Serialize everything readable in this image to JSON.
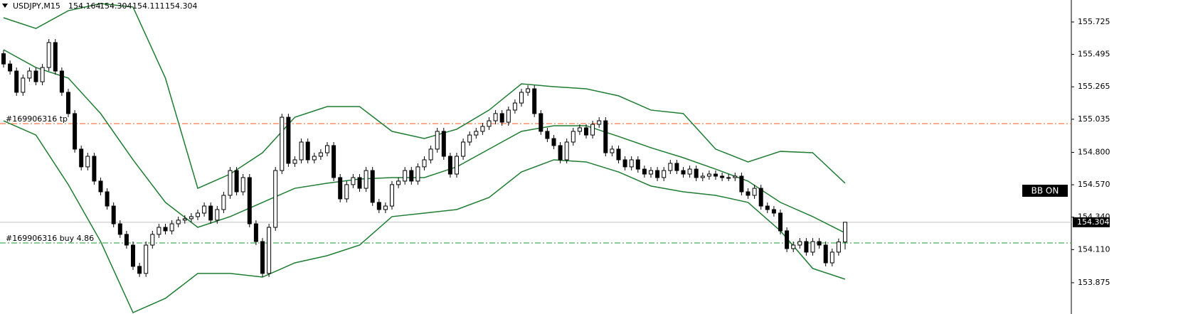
{
  "chart_data": {
    "type": "candlestick",
    "title": "USDJPY,M15",
    "ylim": [
      153.653,
      155.881
    ],
    "yticks": [
      155.725,
      155.495,
      155.265,
      155.035,
      {
        "value": 154.8,
        "label": "154.800"
      },
      {
        "value": 154.57,
        "label": "154.570"
      },
      {
        "value": 154.34,
        "label": "154.340"
      },
      {
        "value": 154.11,
        "label": "154.110"
      },
      153.875
    ],
    "open": [
      155.5,
      155.427,
      155.377,
      155.226,
      155.327,
      155.377,
      155.301,
      155.402,
      155.579,
      155.377,
      155.226,
      155.075,
      154.823,
      154.697,
      154.772,
      154.596,
      154.52,
      154.419,
      154.293,
      154.218,
      154.142,
      153.991,
      153.941,
      154.142,
      154.218,
      154.268,
      154.243,
      154.293,
      154.319,
      154.329,
      154.344,
      154.369,
      154.419,
      154.319,
      154.394,
      154.495,
      154.671,
      154.52,
      154.621,
      154.293,
      154.167,
      153.941,
      154.268,
      154.671,
      155.049,
      154.722,
      154.747,
      154.873,
      154.747,
      154.772,
      154.797,
      154.848,
      154.621,
      154.47,
      154.571,
      154.621,
      154.545,
      154.671,
      154.445,
      154.394,
      154.419,
      154.571,
      154.596,
      154.671,
      154.596,
      154.697,
      154.747,
      154.823,
      154.949,
      154.772,
      154.646,
      154.772,
      154.873,
      154.923,
      154.949,
      154.984,
      155.024,
      155.075,
      155.014,
      155.1,
      155.15,
      155.226,
      155.251,
      155.075,
      154.949,
      154.898,
      154.848,
      154.747,
      154.873,
      154.949,
      154.974,
      154.923,
      154.999,
      155.024,
      154.797,
      154.823,
      154.747,
      154.697,
      154.747,
      154.681,
      154.646,
      154.671,
      154.621,
      154.671,
      154.722,
      154.671,
      154.646,
      154.681,
      154.621,
      154.631,
      154.646,
      154.631,
      154.621,
      154.621,
      154.631,
      154.52,
      154.495,
      154.545,
      154.419,
      154.394,
      154.369,
      154.243,
      154.117,
      154.142,
      154.167,
      154.092,
      154.167,
      154.142,
      154.016,
      154.092,
      154.164
    ],
    "high": [
      155.525,
      155.452,
      155.402,
      155.352,
      155.402,
      155.402,
      155.427,
      155.604,
      155.604,
      155.402,
      155.251,
      155.1,
      154.848,
      154.797,
      154.797,
      154.621,
      154.545,
      154.444,
      154.318,
      154.243,
      154.167,
      154.016,
      154.167,
      154.243,
      154.293,
      154.293,
      154.318,
      154.344,
      154.354,
      154.369,
      154.394,
      154.444,
      154.444,
      154.419,
      154.52,
      154.696,
      154.696,
      154.646,
      154.646,
      154.318,
      154.192,
      154.293,
      154.696,
      155.074,
      155.074,
      154.772,
      154.898,
      154.898,
      154.797,
      154.822,
      154.873,
      154.873,
      154.646,
      154.596,
      154.646,
      154.646,
      154.696,
      154.696,
      154.47,
      154.444,
      154.596,
      154.621,
      154.696,
      154.696,
      154.722,
      154.772,
      154.848,
      154.974,
      154.974,
      154.797,
      154.797,
      154.898,
      154.948,
      154.974,
      155.009,
      155.049,
      155.1,
      155.1,
      155.125,
      155.175,
      155.251,
      155.276,
      155.276,
      155.1,
      154.974,
      154.923,
      154.873,
      154.898,
      154.974,
      154.999,
      154.999,
      155.024,
      155.049,
      155.049,
      154.848,
      154.848,
      154.772,
      154.772,
      154.772,
      154.706,
      154.696,
      154.696,
      154.696,
      154.747,
      154.747,
      154.696,
      154.706,
      154.706,
      154.656,
      154.671,
      154.671,
      154.656,
      154.646,
      154.656,
      154.656,
      154.545,
      154.57,
      154.57,
      154.444,
      154.419,
      154.394,
      154.268,
      154.167,
      154.192,
      154.192,
      154.192,
      154.192,
      154.167,
      154.117,
      154.189,
      154.304
    ],
    "low": [
      155.402,
      155.352,
      155.201,
      155.201,
      155.302,
      155.276,
      155.276,
      155.377,
      155.352,
      155.201,
      155.05,
      154.798,
      154.672,
      154.672,
      154.571,
      154.495,
      154.394,
      154.268,
      154.193,
      154.117,
      153.966,
      153.916,
      153.916,
      154.117,
      154.193,
      154.218,
      154.218,
      154.268,
      154.294,
      154.304,
      154.319,
      154.344,
      154.294,
      154.294,
      154.369,
      154.47,
      154.495,
      154.495,
      154.268,
      154.142,
      153.916,
      153.916,
      154.243,
      154.646,
      154.697,
      154.697,
      154.722,
      154.722,
      154.722,
      154.747,
      154.772,
      154.596,
      154.445,
      154.445,
      154.546,
      154.52,
      154.52,
      154.42,
      154.369,
      154.369,
      154.394,
      154.546,
      154.571,
      154.571,
      154.571,
      154.672,
      154.722,
      154.798,
      154.747,
      154.621,
      154.621,
      154.747,
      154.848,
      154.898,
      154.924,
      154.959,
      154.999,
      154.989,
      154.989,
      155.075,
      155.125,
      155.201,
      155.05,
      154.924,
      154.873,
      154.823,
      154.722,
      154.722,
      154.848,
      154.924,
      154.898,
      154.898,
      154.974,
      154.772,
      154.772,
      154.722,
      154.672,
      154.672,
      154.656,
      154.621,
      154.621,
      154.596,
      154.596,
      154.646,
      154.646,
      154.621,
      154.621,
      154.596,
      154.596,
      154.606,
      154.606,
      154.596,
      154.596,
      154.596,
      154.495,
      154.47,
      154.47,
      154.394,
      154.369,
      154.344,
      154.218,
      154.092,
      154.092,
      154.117,
      154.067,
      154.067,
      154.117,
      153.991,
      153.991,
      154.067,
      154.111
    ],
    "close": [
      155.427,
      155.377,
      155.226,
      155.327,
      155.377,
      155.301,
      155.402,
      155.579,
      155.377,
      155.226,
      155.075,
      154.823,
      154.697,
      154.772,
      154.596,
      154.52,
      154.419,
      154.293,
      154.218,
      154.142,
      153.991,
      153.941,
      154.142,
      154.218,
      154.268,
      154.243,
      154.293,
      154.319,
      154.329,
      154.344,
      154.369,
      154.419,
      154.319,
      154.394,
      154.495,
      154.671,
      154.52,
      154.621,
      154.293,
      154.167,
      153.941,
      154.268,
      154.671,
      155.049,
      154.722,
      154.747,
      154.873,
      154.747,
      154.772,
      154.797,
      154.848,
      154.621,
      154.47,
      154.571,
      154.621,
      154.545,
      154.671,
      154.445,
      154.394,
      154.419,
      154.571,
      154.596,
      154.671,
      154.596,
      154.697,
      154.747,
      154.823,
      154.949,
      154.772,
      154.646,
      154.772,
      154.873,
      154.923,
      154.949,
      154.984,
      155.024,
      155.075,
      155.014,
      155.1,
      155.15,
      155.226,
      155.251,
      155.075,
      154.949,
      154.898,
      154.848,
      154.747,
      154.873,
      154.949,
      154.974,
      154.923,
      154.999,
      155.024,
      154.797,
      154.823,
      154.747,
      154.697,
      154.747,
      154.681,
      154.646,
      154.671,
      154.621,
      154.671,
      154.722,
      154.671,
      154.646,
      154.681,
      154.621,
      154.631,
      154.646,
      154.631,
      154.621,
      154.621,
      154.631,
      154.52,
      154.495,
      154.545,
      154.419,
      154.394,
      154.369,
      154.243,
      154.117,
      154.142,
      154.167,
      154.092,
      154.167,
      154.142,
      154.016,
      154.092,
      154.164,
      154.304
    ],
    "bands": {
      "color": "#1e7d32",
      "x": [
        0,
        5,
        10,
        15,
        20,
        25,
        30,
        35,
        40,
        45,
        50,
        55,
        60,
        65,
        70,
        75,
        80,
        85,
        90,
        95,
        100,
        105,
        110,
        115,
        120,
        125,
        130
      ],
      "upper": [
        155.755,
        155.679,
        155.805,
        155.856,
        155.831,
        155.327,
        154.545,
        154.646,
        154.797,
        155.049,
        155.125,
        155.125,
        154.949,
        154.898,
        154.964,
        155.1,
        155.286,
        155.266,
        155.251,
        155.201,
        155.1,
        155.075,
        154.823,
        154.732,
        154.807,
        154.797,
        154.581
      ],
      "middle": [
        155.528,
        155.402,
        155.327,
        155.075,
        154.747,
        154.445,
        154.268,
        154.344,
        154.445,
        154.545,
        154.581,
        154.611,
        154.621,
        154.621,
        154.697,
        154.823,
        154.949,
        154.989,
        154.989,
        154.913,
        154.833,
        154.762,
        154.681,
        154.596,
        154.445,
        154.344,
        154.228
      ],
      "lower": [
        155.024,
        154.923,
        154.571,
        154.167,
        153.663,
        153.764,
        153.941,
        153.941,
        153.915,
        154.016,
        154.067,
        154.142,
        154.344,
        154.369,
        154.394,
        154.48,
        154.661,
        154.747,
        154.732,
        154.661,
        154.561,
        154.52,
        154.495,
        154.445,
        154.243,
        153.976,
        153.9
      ]
    },
    "levels": [
      {
        "label": "#169906316 tp",
        "value": 155.004,
        "color": "#ff5a1f"
      },
      {
        "label": "#169906316 buy 4.86",
        "value": 154.157,
        "color": "#1e9a2e"
      }
    ],
    "button_label": "BB ON"
  }
}
